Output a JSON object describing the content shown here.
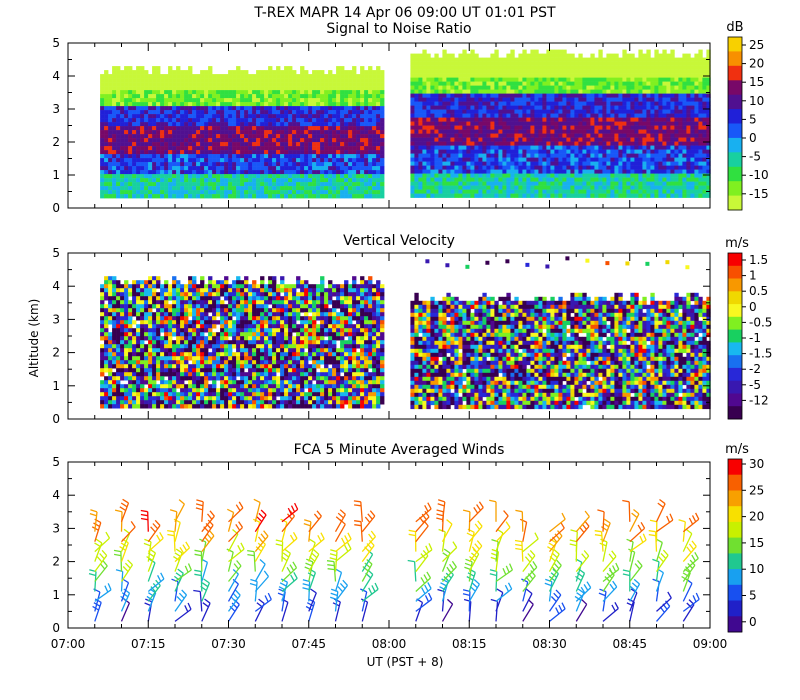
{
  "figure": {
    "title": "T-REX  MAPR 14 Apr 06  09:00 UT  01:01  PST",
    "xlabel": "UT  (PST + 8)",
    "ylabel": "Altitude (km)"
  },
  "chart_data": [
    {
      "type": "heatmap",
      "title": "Signal to Noise Ratio",
      "x_range": [
        "07:00",
        "09:00"
      ],
      "x_ticks": [
        "07:00",
        "07:15",
        "07:30",
        "07:45",
        "08:00",
        "08:15",
        "08:30",
        "08:45",
        "09:00"
      ],
      "ylim": [
        0,
        5
      ],
      "y_ticks": [
        "0",
        "1",
        "2",
        "3",
        "4",
        "5"
      ],
      "colorbar_unit": "dB",
      "colorbar_labels": [
        "25",
        "20",
        "15",
        "10",
        "5",
        "0",
        "-5",
        "-10",
        "-15"
      ],
      "colorbar_colors": [
        "#f8d000",
        "#f89000",
        "#f03010",
        "#780868",
        "#501090",
        "#2020d8",
        "#1858f8",
        "#18b0f0",
        "#18d0a0",
        "#30e040",
        "#80f020",
        "#c8f838"
      ],
      "data_gap": [
        "07:59",
        "08:04"
      ],
      "segments": [
        {
          "x_start": "07:06",
          "x_end": "07:59",
          "y_bottom": 0.35,
          "y_top": 4.3
        },
        {
          "x_start": "08:04",
          "x_end": "09:00",
          "y_bottom": 0.35,
          "y_top": 4.8
        }
      ]
    },
    {
      "type": "heatmap",
      "title": "Vertical Velocity",
      "x_range": [
        "07:00",
        "09:00"
      ],
      "x_ticks": [
        "07:00",
        "07:15",
        "07:30",
        "07:45",
        "08:00",
        "08:15",
        "08:30",
        "08:45",
        "09:00"
      ],
      "ylim": [
        0,
        5
      ],
      "y_ticks": [
        "0",
        "1",
        "2",
        "3",
        "4",
        "5"
      ],
      "colorbar_unit": "m/s",
      "colorbar_labels": [
        "1.5",
        "1",
        "0.5",
        "0",
        "-0.5",
        "-1",
        "-1.5",
        "-2",
        "-5",
        "-12"
      ],
      "colorbar_colors": [
        "#f80000",
        "#f85000",
        "#f89800",
        "#f0d800",
        "#f8f820",
        "#80f020",
        "#18d060",
        "#18b8f0",
        "#1870f0",
        "#2828d8",
        "#3818b0",
        "#500890",
        "#380050"
      ],
      "data_gap": [
        "07:59",
        "08:04"
      ],
      "segments": [
        {
          "x_start": "07:06",
          "x_end": "07:59",
          "y_bottom": 0.35,
          "y_top": 4.3
        },
        {
          "x_start": "08:04",
          "x_end": "09:00",
          "y_bottom": 0.35,
          "y_top": 3.8
        }
      ]
    },
    {
      "type": "scatter",
      "title": "FCA 5 Minute Averaged Winds",
      "x_range": [
        "07:00",
        "09:00"
      ],
      "x_ticks": [
        "07:00",
        "07:15",
        "07:30",
        "07:45",
        "08:00",
        "08:15",
        "08:30",
        "08:45",
        "09:00"
      ],
      "ylim": [
        0,
        5
      ],
      "y_ticks": [
        "0",
        "1",
        "2",
        "3",
        "4",
        "5"
      ],
      "colorbar_unit": "m/s",
      "colorbar_labels": [
        "30",
        "25",
        "20",
        "15",
        "10",
        "5",
        "0"
      ],
      "colorbar_colors": [
        "#f80000",
        "#f86000",
        "#f8a000",
        "#f8e000",
        "#c8f000",
        "#70e030",
        "#20c890",
        "#18a0f0",
        "#1850f0",
        "#2020c8",
        "#400890"
      ],
      "barb_times_utc": [
        "07:05",
        "07:10",
        "07:15",
        "07:20",
        "07:25",
        "07:30",
        "07:35",
        "07:40",
        "07:45",
        "07:50",
        "07:55",
        "08:05",
        "08:10",
        "08:15",
        "08:20",
        "08:25",
        "08:30",
        "08:35",
        "08:40",
        "08:45",
        "08:50",
        "08:55"
      ],
      "barb_altitudes_km": [
        0.2,
        0.5,
        0.8,
        1.1,
        1.4,
        1.7,
        2.0,
        2.3,
        2.6,
        2.9,
        3.2
      ]
    }
  ]
}
